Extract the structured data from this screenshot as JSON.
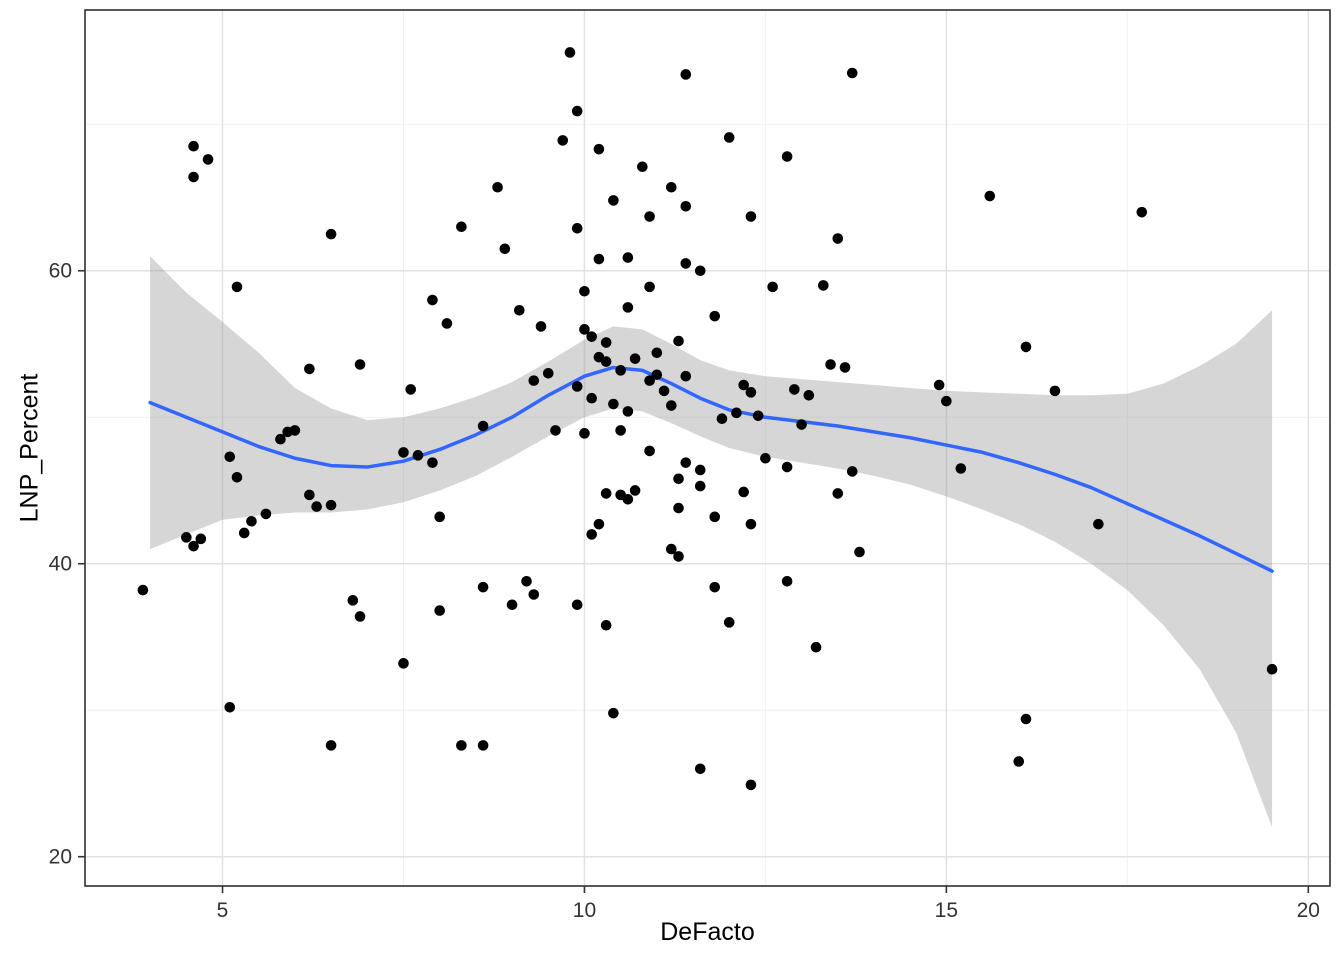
{
  "chart_data": {
    "type": "scatter",
    "title": "",
    "xlabel": "DeFacto",
    "ylabel": "LNP_Percent",
    "xlim": [
      3.1,
      20.3
    ],
    "ylim": [
      18.0,
      77.8
    ],
    "x_ticks": [
      5,
      10,
      15,
      20
    ],
    "y_ticks": [
      20,
      40,
      60
    ],
    "x_minor_ticks": [
      7.5,
      12.5,
      17.5
    ],
    "y_minor_ticks": [
      30,
      50,
      70
    ],
    "grid": true,
    "legend": "none",
    "style": {
      "background": "#FFFFFF",
      "grid_major": "#E2E2E2",
      "grid_minor": "#F1F1F1",
      "panel_border": "#2F2F2F",
      "tick": "#333333",
      "tick_label": "#333333",
      "title_color": "#000000"
    },
    "series": [
      {
        "name": "observations",
        "type": "points",
        "color": "#000000",
        "points": [
          [
            9.8,
            74.9
          ],
          [
            11.4,
            73.4
          ],
          [
            13.7,
            73.5
          ],
          [
            9.9,
            70.9
          ],
          [
            9.7,
            68.9
          ],
          [
            12.0,
            69.1
          ],
          [
            4.6,
            68.5
          ],
          [
            10.2,
            68.3
          ],
          [
            4.8,
            67.6
          ],
          [
            12.8,
            67.8
          ],
          [
            4.6,
            66.4
          ],
          [
            10.8,
            67.1
          ],
          [
            8.8,
            65.7
          ],
          [
            11.2,
            65.7
          ],
          [
            10.4,
            64.8
          ],
          [
            15.6,
            65.1
          ],
          [
            17.7,
            64.0
          ],
          [
            11.4,
            64.4
          ],
          [
            10.9,
            63.7
          ],
          [
            12.3,
            63.7
          ],
          [
            8.3,
            63.0
          ],
          [
            9.9,
            62.9
          ],
          [
            6.5,
            62.5
          ],
          [
            13.5,
            62.2
          ],
          [
            8.9,
            61.5
          ],
          [
            10.2,
            60.8
          ],
          [
            10.6,
            60.9
          ],
          [
            11.4,
            60.5
          ],
          [
            11.6,
            60.0
          ],
          [
            10.9,
            58.9
          ],
          [
            5.2,
            58.9
          ],
          [
            12.6,
            58.9
          ],
          [
            13.3,
            59.0
          ],
          [
            10.0,
            58.6
          ],
          [
            7.9,
            58.0
          ],
          [
            10.6,
            57.5
          ],
          [
            9.1,
            57.3
          ],
          [
            11.8,
            56.9
          ],
          [
            8.1,
            56.4
          ],
          [
            9.4,
            56.2
          ],
          [
            10.1,
            55.5
          ],
          [
            10.3,
            55.1
          ],
          [
            11.3,
            55.2
          ],
          [
            10.2,
            54.1
          ],
          [
            11.0,
            54.4
          ],
          [
            16.1,
            54.8
          ],
          [
            6.9,
            53.6
          ],
          [
            13.4,
            53.6
          ],
          [
            6.2,
            53.3
          ],
          [
            10.5,
            53.2
          ],
          [
            11.4,
            52.8
          ],
          [
            10.9,
            52.5
          ],
          [
            9.9,
            52.1
          ],
          [
            7.6,
            51.9
          ],
          [
            11.1,
            51.8
          ],
          [
            12.2,
            52.2
          ],
          [
            12.3,
            51.7
          ],
          [
            12.9,
            51.9
          ],
          [
            13.1,
            51.5
          ],
          [
            14.9,
            52.2
          ],
          [
            15.0,
            51.1
          ],
          [
            16.5,
            51.8
          ],
          [
            10.1,
            51.3
          ],
          [
            10.4,
            50.9
          ],
          [
            10.6,
            50.4
          ],
          [
            9.6,
            49.1
          ],
          [
            10.0,
            48.9
          ],
          [
            5.8,
            48.5
          ],
          [
            6.0,
            49.1
          ],
          [
            8.6,
            49.4
          ],
          [
            10.5,
            49.1
          ],
          [
            7.5,
            47.6
          ],
          [
            7.9,
            46.9
          ],
          [
            5.1,
            47.3
          ],
          [
            12.5,
            47.2
          ],
          [
            12.8,
            46.6
          ],
          [
            11.4,
            46.9
          ],
          [
            11.6,
            46.4
          ],
          [
            13.7,
            46.3
          ],
          [
            15.2,
            46.5
          ],
          [
            5.2,
            45.9
          ],
          [
            6.2,
            44.7
          ],
          [
            10.5,
            44.7
          ],
          [
            10.7,
            45.0
          ],
          [
            11.3,
            45.8
          ],
          [
            11.6,
            45.3
          ],
          [
            12.2,
            44.9
          ],
          [
            13.5,
            44.8
          ],
          [
            11.3,
            43.8
          ],
          [
            11.8,
            43.2
          ],
          [
            12.3,
            42.7
          ],
          [
            5.4,
            42.9
          ],
          [
            5.6,
            43.4
          ],
          [
            6.5,
            44.0
          ],
          [
            10.2,
            42.7
          ],
          [
            17.1,
            42.7
          ],
          [
            4.5,
            41.8
          ],
          [
            4.6,
            41.2
          ],
          [
            4.7,
            41.7
          ],
          [
            5.3,
            42.1
          ],
          [
            10.1,
            42.0
          ],
          [
            11.2,
            41.0
          ],
          [
            11.3,
            40.5
          ],
          [
            13.8,
            40.8
          ],
          [
            3.9,
            38.2
          ],
          [
            8.6,
            38.4
          ],
          [
            9.2,
            38.8
          ],
          [
            9.3,
            37.9
          ],
          [
            11.8,
            38.4
          ],
          [
            12.8,
            38.8
          ],
          [
            6.8,
            37.5
          ],
          [
            6.9,
            36.4
          ],
          [
            8.0,
            36.8
          ],
          [
            9.0,
            37.2
          ],
          [
            9.9,
            37.2
          ],
          [
            10.3,
            35.8
          ],
          [
            12.0,
            36.0
          ],
          [
            13.2,
            34.3
          ],
          [
            7.5,
            33.2
          ],
          [
            10.4,
            29.8
          ],
          [
            16.1,
            29.4
          ],
          [
            5.1,
            30.2
          ],
          [
            6.5,
            27.6
          ],
          [
            8.3,
            27.6
          ],
          [
            8.6,
            27.6
          ],
          [
            16.0,
            26.5
          ],
          [
            11.6,
            26.0
          ],
          [
            12.3,
            24.9
          ],
          [
            19.5,
            32.8
          ],
          [
            10.0,
            56.0
          ],
          [
            10.3,
            53.8
          ],
          [
            10.7,
            54.0
          ],
          [
            11.0,
            52.9
          ],
          [
            11.2,
            50.8
          ],
          [
            9.5,
            53.0
          ],
          [
            9.3,
            52.5
          ],
          [
            11.9,
            49.9
          ],
          [
            12.1,
            50.3
          ],
          [
            13.0,
            49.5
          ],
          [
            7.7,
            47.4
          ],
          [
            8.0,
            43.2
          ],
          [
            5.9,
            49.0
          ],
          [
            6.3,
            43.9
          ],
          [
            10.9,
            47.7
          ],
          [
            10.6,
            44.4
          ],
          [
            10.3,
            44.8
          ],
          [
            12.4,
            50.1
          ],
          [
            13.6,
            53.4
          ]
        ]
      },
      {
        "name": "loess_smooth",
        "type": "line",
        "color": "#3366FF",
        "width": 3.5,
        "x": [
          4.0,
          4.5,
          5.0,
          5.5,
          6.0,
          6.5,
          7.0,
          7.5,
          8.0,
          8.5,
          9.0,
          9.5,
          10.0,
          10.4,
          10.8,
          11.2,
          11.6,
          12.0,
          12.5,
          13.0,
          13.5,
          14.0,
          14.5,
          15.0,
          15.5,
          16.0,
          16.5,
          17.0,
          17.5,
          18.0,
          18.5,
          19.0,
          19.5
        ],
        "y": [
          51.0,
          50.0,
          49.0,
          48.0,
          47.2,
          46.7,
          46.6,
          47.0,
          47.8,
          48.8,
          50.0,
          51.5,
          52.8,
          53.4,
          53.2,
          52.3,
          51.3,
          50.5,
          50.0,
          49.7,
          49.4,
          49.0,
          48.6,
          48.1,
          47.6,
          46.9,
          46.1,
          45.2,
          44.1,
          43.0,
          41.9,
          40.7,
          39.5
        ]
      },
      {
        "name": "confidence_ribbon",
        "type": "area",
        "color": "#999999",
        "opacity": 0.4,
        "x": [
          4.0,
          4.5,
          5.0,
          5.5,
          6.0,
          6.5,
          7.0,
          7.5,
          8.0,
          8.5,
          9.0,
          9.5,
          10.0,
          10.4,
          10.8,
          11.2,
          11.6,
          12.0,
          12.5,
          13.0,
          13.5,
          14.0,
          14.5,
          15.0,
          15.5,
          16.0,
          16.5,
          17.0,
          17.5,
          18.0,
          18.5,
          19.0,
          19.5
        ],
        "lower": [
          41.0,
          42.0,
          43.0,
          43.3,
          43.5,
          43.5,
          43.7,
          44.2,
          45.0,
          46.0,
          47.3,
          48.7,
          50.0,
          50.6,
          50.4,
          49.6,
          48.7,
          47.9,
          47.3,
          46.9,
          46.5,
          46.0,
          45.4,
          44.6,
          43.7,
          42.7,
          41.5,
          40.0,
          38.2,
          35.8,
          32.8,
          28.5,
          22.0
        ],
        "upper": [
          61.0,
          58.5,
          56.5,
          54.4,
          52.0,
          50.6,
          49.8,
          50.0,
          50.6,
          51.4,
          52.4,
          53.8,
          55.3,
          56.2,
          56.0,
          55.0,
          53.9,
          53.2,
          52.8,
          52.6,
          52.4,
          52.2,
          52.0,
          51.8,
          51.7,
          51.6,
          51.5,
          51.5,
          51.6,
          52.3,
          53.5,
          55.0,
          57.3
        ]
      }
    ]
  }
}
